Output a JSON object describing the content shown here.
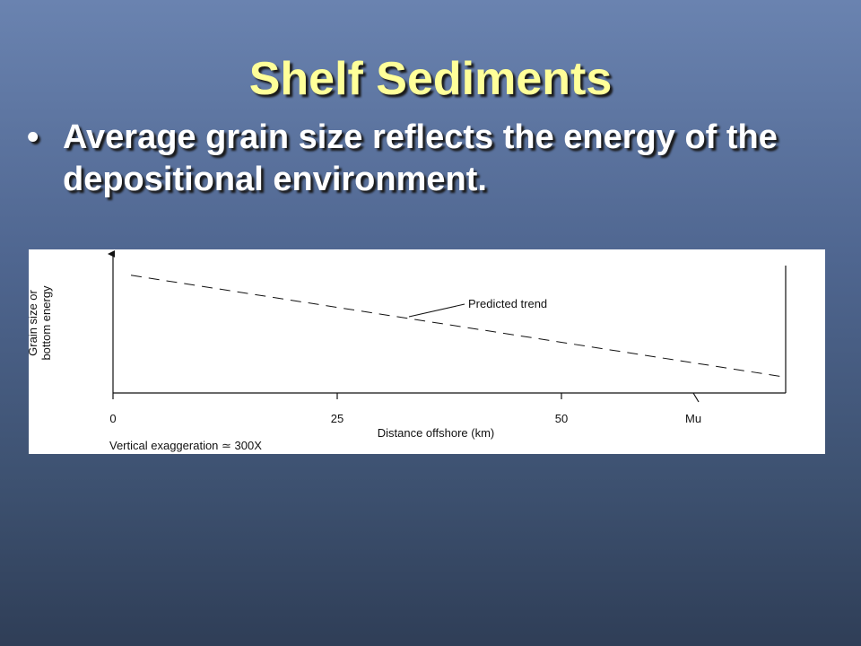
{
  "slide": {
    "title": "Shelf Sediments",
    "bullet_marker": "•",
    "bullet_text": "Average grain size reflects the energy of the depositional environment."
  },
  "chart_data": {
    "type": "line",
    "xlabel": "Distance offshore (km)",
    "ylabel_lines": [
      "Grain size or",
      "bottom energy"
    ],
    "x_ticks": [
      {
        "value": 0,
        "label": "0"
      },
      {
        "value": 25,
        "label": "25"
      },
      {
        "value": 50,
        "label": "50"
      },
      {
        "value": 65,
        "label": "Mu"
      }
    ],
    "xlim": [
      0,
      75
    ],
    "ylim": [
      0,
      1
    ],
    "grid": false,
    "series": [
      {
        "label": "Predicted trend",
        "style": "dashed",
        "x": [
          2,
          75
        ],
        "y": [
          0.82,
          0.11
        ]
      }
    ],
    "annotation_point": {
      "x": 33,
      "y": 0.5
    },
    "footnote": "Vertical exaggeration ≃ 300X"
  }
}
